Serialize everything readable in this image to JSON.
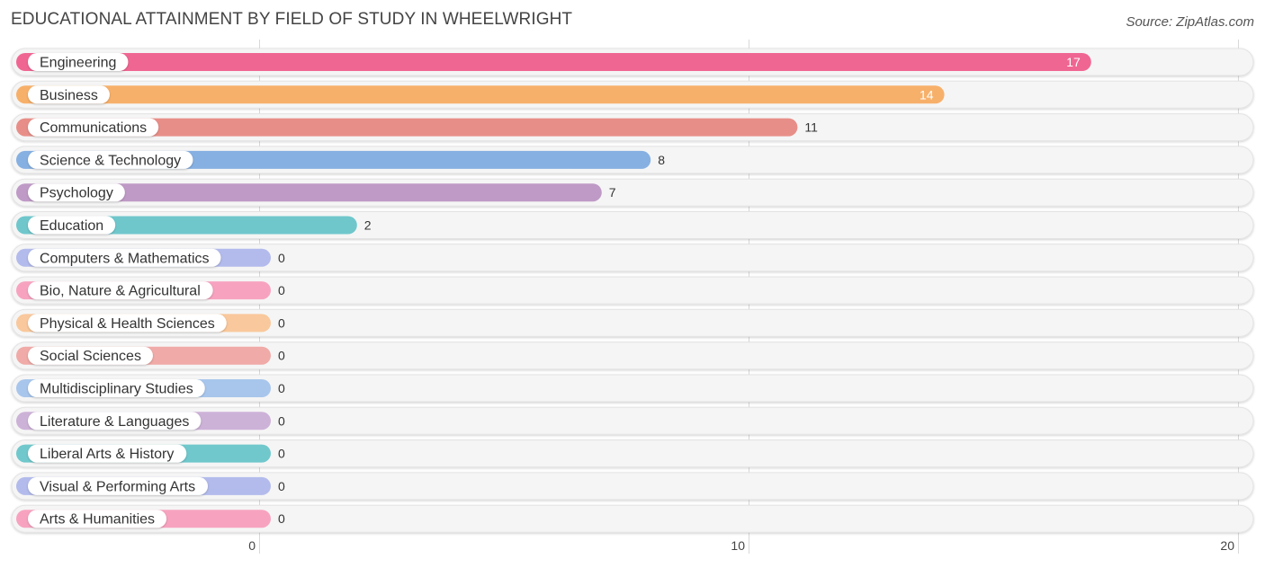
{
  "title": "EDUCATIONAL ATTAINMENT BY FIELD OF STUDY IN WHEELWRIGHT",
  "source": "Source: ZipAtlas.com",
  "chart_data": {
    "type": "bar",
    "orientation": "horizontal",
    "categories": [
      "Engineering",
      "Business",
      "Communications",
      "Science & Technology",
      "Psychology",
      "Education",
      "Computers & Mathematics",
      "Bio, Nature & Agricultural",
      "Physical & Health Sciences",
      "Social Sciences",
      "Multidisciplinary Studies",
      "Literature & Languages",
      "Liberal Arts & History",
      "Visual & Performing Arts",
      "Arts & Humanities"
    ],
    "values": [
      17,
      14,
      11,
      8,
      7,
      2,
      0,
      0,
      0,
      0,
      0,
      0,
      0,
      0,
      0
    ],
    "colors": [
      "#f06692",
      "#f7b06a",
      "#e88e88",
      "#86b0e2",
      "#bf9ac6",
      "#6fc7cc",
      "#b3bbec",
      "#f7a3c0",
      "#f9c89c",
      "#f0aaa7",
      "#a8c6ec",
      "#cdb2d8",
      "#70c8cc",
      "#b3bbec",
      "#f7a3c0"
    ],
    "xlim": [
      0,
      20
    ],
    "xticks": [
      0,
      10,
      20
    ],
    "grid": true,
    "legend": "none"
  }
}
